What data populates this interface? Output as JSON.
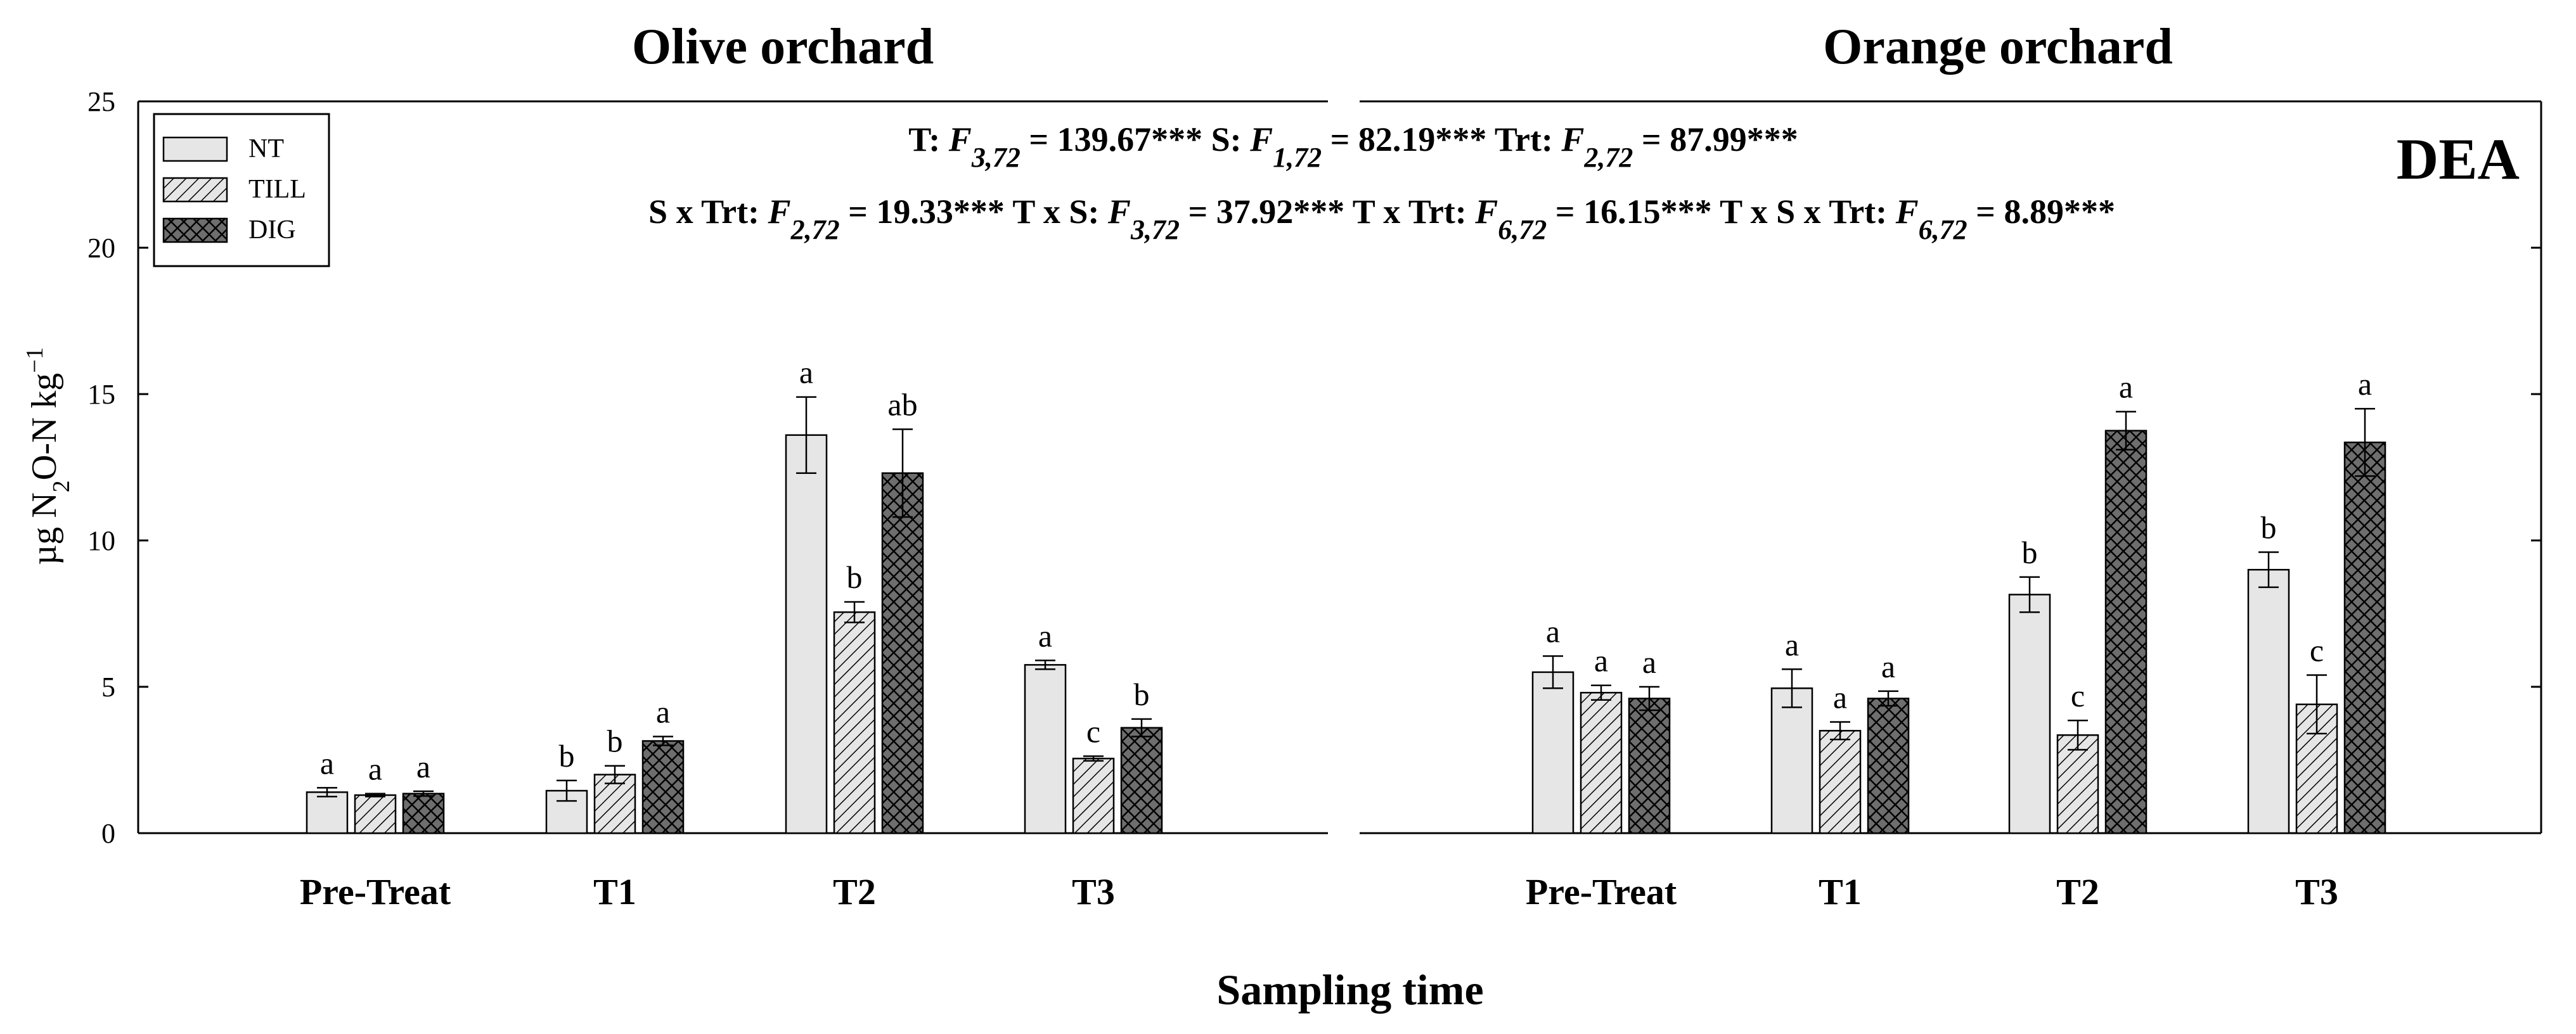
{
  "figure": {
    "xlabel": "Sampling time",
    "ylabel_parts": {
      "pre": "µg N",
      "sub": "2",
      "mid": "O-N kg",
      "sup": "−1"
    },
    "panel_label": "DEA",
    "stats_line1": [
      {
        "t": "T: "
      },
      {
        "t": "F",
        "it": true
      },
      {
        "t": "3,72",
        "it": true,
        "sub": true
      },
      {
        "t": " = 139.67***   S: "
      },
      {
        "t": "F",
        "it": true
      },
      {
        "t": "1,72",
        "it": true,
        "sub": true
      },
      {
        "t": " = 82.19***   Trt: "
      },
      {
        "t": "F",
        "it": true
      },
      {
        "t": "2,72",
        "it": true,
        "sub": true
      },
      {
        "t": " = 87.99***"
      }
    ],
    "stats_line2": [
      {
        "t": "S x Trt: "
      },
      {
        "t": "F",
        "it": true
      },
      {
        "t": "2,72",
        "it": true,
        "sub": true
      },
      {
        "t": " = 19.33***   T x S: "
      },
      {
        "t": "F",
        "it": true
      },
      {
        "t": "3,72",
        "it": true,
        "sub": true
      },
      {
        "t": " = 37.92***   T x Trt: "
      },
      {
        "t": "F",
        "it": true
      },
      {
        "t": "6,72",
        "it": true,
        "sub": true
      },
      {
        "t": " = 16.15***  T x S x Trt: "
      },
      {
        "t": "F",
        "it": true
      },
      {
        "t": "6,72",
        "it": true,
        "sub": true
      },
      {
        "t": " = 8.89***"
      }
    ]
  },
  "chart_data": [
    {
      "type": "bar",
      "title": "Olive orchard",
      "xlabel": "Sampling time",
      "ylabel": "µg N2O-N kg−1",
      "ylim": [
        0,
        25
      ],
      "yticks": [
        0,
        5,
        10,
        15,
        20,
        25
      ],
      "categories": [
        "Pre-Treat",
        "T1",
        "T2",
        "T3"
      ],
      "legend": {
        "position": "top-left",
        "entries": [
          "NT",
          "TILL",
          "DIG"
        ]
      },
      "series": [
        {
          "name": "NT",
          "values": [
            1.4,
            1.45,
            13.6,
            5.75
          ],
          "errors": [
            0.15,
            0.35,
            1.3,
            0.15
          ],
          "letters": [
            "a",
            "b",
            "a",
            "a"
          ]
        },
        {
          "name": "TILL",
          "values": [
            1.3,
            2.0,
            7.55,
            2.55
          ],
          "errors": [
            0.05,
            0.3,
            0.35,
            0.08
          ],
          "letters": [
            "a",
            "b",
            "b",
            "c"
          ]
        },
        {
          "name": "DIG",
          "values": [
            1.35,
            3.15,
            12.3,
            3.6
          ],
          "errors": [
            0.08,
            0.15,
            1.5,
            0.3
          ],
          "letters": [
            "a",
            "a",
            "ab",
            "b"
          ]
        }
      ]
    },
    {
      "type": "bar",
      "title": "Orange orchard",
      "xlabel": "Sampling time",
      "ylabel": "µg N2O-N kg−1",
      "ylim": [
        0,
        25
      ],
      "yticks": [
        0,
        5,
        10,
        15,
        20,
        25
      ],
      "categories": [
        "Pre-Treat",
        "T1",
        "T2",
        "T3"
      ],
      "series": [
        {
          "name": "NT",
          "values": [
            5.5,
            4.95,
            8.15,
            9.0
          ],
          "errors": [
            0.55,
            0.65,
            0.6,
            0.6
          ],
          "letters": [
            "a",
            "a",
            "b",
            "b"
          ]
        },
        {
          "name": "TILL",
          "values": [
            4.8,
            3.5,
            3.35,
            4.4
          ],
          "errors": [
            0.25,
            0.3,
            0.5,
            1.0
          ],
          "letters": [
            "a",
            "a",
            "c",
            "c"
          ]
        },
        {
          "name": "DIG",
          "values": [
            4.6,
            4.6,
            13.75,
            13.35
          ],
          "errors": [
            0.4,
            0.25,
            0.65,
            1.15
          ],
          "letters": [
            "a",
            "a",
            "a",
            "a"
          ]
        }
      ]
    }
  ]
}
